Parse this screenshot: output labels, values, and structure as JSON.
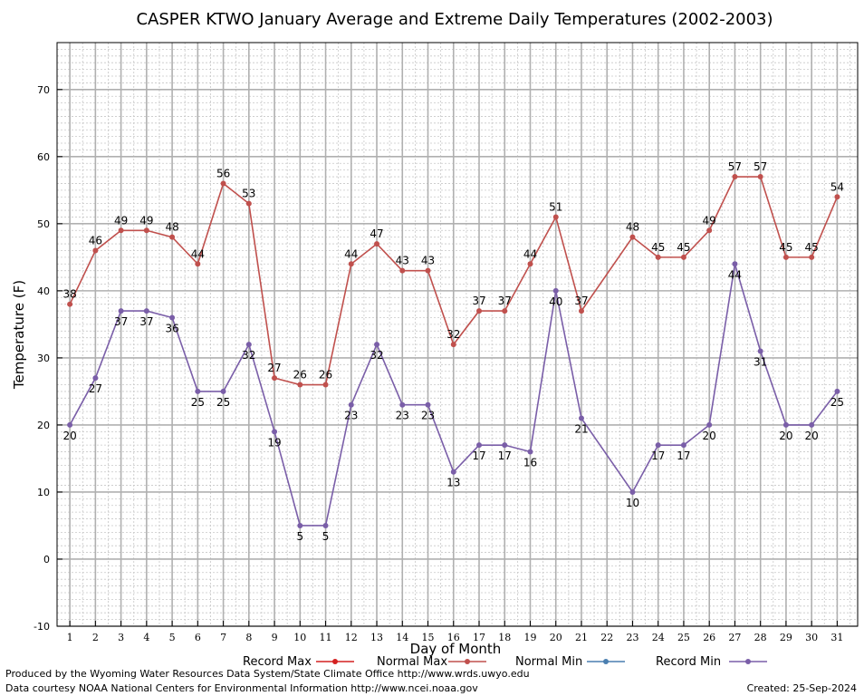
{
  "chart_data": {
    "type": "line",
    "title": "CASPER KTWO January Average and Extreme Daily Temperatures (2002-2003)",
    "xlabel": "Day of Month",
    "ylabel": "Temperature (F)",
    "ylim": [
      -10,
      77
    ],
    "xlim": [
      0.5,
      31.8
    ],
    "yticks": [
      -10,
      0,
      10,
      20,
      30,
      40,
      50,
      60,
      70
    ],
    "x": [
      1,
      2,
      3,
      4,
      5,
      6,
      7,
      8,
      9,
      10,
      11,
      12,
      13,
      14,
      15,
      16,
      17,
      18,
      19,
      20,
      21,
      22,
      23,
      24,
      25,
      26,
      27,
      28,
      29,
      30,
      31
    ],
    "grid": true,
    "legend_position": "bottom",
    "legend": [
      {
        "name": "Record Max",
        "color": "#d42020"
      },
      {
        "name": "Normal Max",
        "color": "#c0504d"
      },
      {
        "name": "Normal Min",
        "color": "#4a7fb0"
      },
      {
        "name": "Record Min",
        "color": "#7a5ea8"
      }
    ],
    "series": [
      {
        "name": "Normal Max",
        "color": "#c0504d",
        "label_position": "above",
        "points": [
          [
            1,
            38
          ],
          [
            2,
            46
          ],
          [
            3,
            49
          ],
          [
            4,
            49
          ],
          [
            5,
            48
          ],
          [
            6,
            44
          ],
          [
            7,
            56
          ],
          [
            8,
            53
          ],
          [
            9,
            27
          ],
          [
            10,
            26
          ],
          [
            11,
            26
          ],
          [
            12,
            44
          ],
          [
            13,
            47
          ],
          [
            14,
            43
          ],
          [
            15,
            43
          ],
          [
            16,
            32
          ],
          [
            17,
            37
          ],
          [
            18,
            37
          ],
          [
            19,
            44
          ],
          [
            20,
            51
          ],
          [
            21,
            37
          ],
          [
            23,
            48
          ],
          [
            24,
            45
          ],
          [
            25,
            45
          ],
          [
            26,
            49
          ],
          [
            27,
            57
          ],
          [
            28,
            57
          ],
          [
            29,
            45
          ],
          [
            30,
            45
          ],
          [
            31,
            54
          ]
        ]
      },
      {
        "name": "Record Min",
        "color": "#7a5ea8",
        "label_position": "below",
        "points": [
          [
            1,
            20
          ],
          [
            2,
            27
          ],
          [
            3,
            37
          ],
          [
            4,
            37
          ],
          [
            5,
            36
          ],
          [
            6,
            25
          ],
          [
            7,
            25
          ],
          [
            8,
            32
          ],
          [
            9,
            19
          ],
          [
            10,
            5
          ],
          [
            11,
            5
          ],
          [
            12,
            23
          ],
          [
            13,
            32
          ],
          [
            14,
            23
          ],
          [
            15,
            23
          ],
          [
            16,
            13
          ],
          [
            17,
            17
          ],
          [
            18,
            17
          ],
          [
            19,
            16
          ],
          [
            20,
            40
          ],
          [
            21,
            21
          ],
          [
            23,
            10
          ],
          [
            24,
            17
          ],
          [
            25,
            17
          ],
          [
            26,
            20
          ],
          [
            27,
            44
          ],
          [
            28,
            31
          ],
          [
            29,
            20
          ],
          [
            30,
            20
          ],
          [
            31,
            25
          ]
        ]
      }
    ]
  },
  "footer": {
    "credit_line1": "Produced by the Wyoming Water Resources Data System/State Climate Office http://www.wrds.uwyo.edu",
    "credit_line2": "Data courtesy NOAA National Centers for Environmental Information http://www.ncei.noaa.gov",
    "created": "Created:  25-Sep-2024"
  }
}
